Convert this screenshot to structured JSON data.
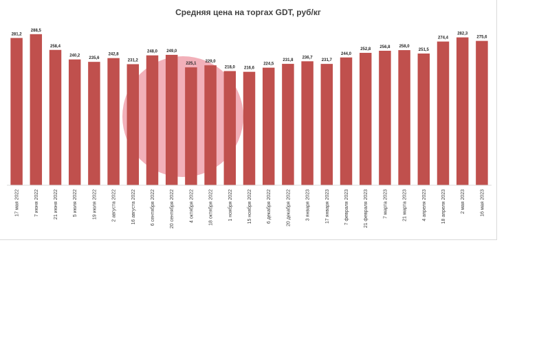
{
  "chart_data": {
    "type": "bar",
    "title": "Средняя цена на торгах GDT, руб/кг",
    "xlabel": "",
    "ylabel": "",
    "ylim": [
      0,
      300
    ],
    "grid": false,
    "legend": "none",
    "categories": [
      "17 мая 2022",
      "7 июня 2022",
      "21 июня 2022",
      "5 июля 2022",
      "19 июля 2022",
      "2 августа 2022",
      "16 августа 2022",
      "6 сентября 2022",
      "20 сентября 2022",
      "4 октября 2022",
      "18 октября 2022",
      "1 ноября 2022",
      "15 ноября 2022",
      "6 декабря 2022",
      "20 декабря 2022",
      "3 января 2023",
      "17 января 2023",
      "7 февраля 2023",
      "21 февраля 2023",
      "7 марта 2023",
      "21 марта 2023",
      "4 апреля 2023",
      "18 апреля 2023",
      "2 мая 2023",
      "16 мая 2023"
    ],
    "values": [
      281.2,
      288.5,
      258.4,
      240.2,
      235.6,
      242.8,
      231.2,
      248.0,
      249.0,
      225.1,
      229.0,
      218.0,
      216.6,
      224.5,
      231.8,
      236.7,
      231.7,
      244.0,
      252.8,
      256.8,
      258.0,
      251.5,
      274.4,
      282.3,
      275.6
    ],
    "value_labels": [
      "281,2",
      "288,5",
      "258,4",
      "240,2",
      "235,6",
      "242,8",
      "231,2",
      "248,0",
      "249,0",
      "225,1",
      "229,0",
      "218,0",
      "216,6",
      "224,5",
      "231,8",
      "236,7",
      "231,7",
      "244,0",
      "252,8",
      "256,8",
      "258,0",
      "251,5",
      "274,4",
      "282,3",
      "275,6"
    ],
    "bar_color": "#c0504d"
  },
  "watermark": {
    "color": "#e8707f",
    "icon": "stamp-logo-icon"
  }
}
